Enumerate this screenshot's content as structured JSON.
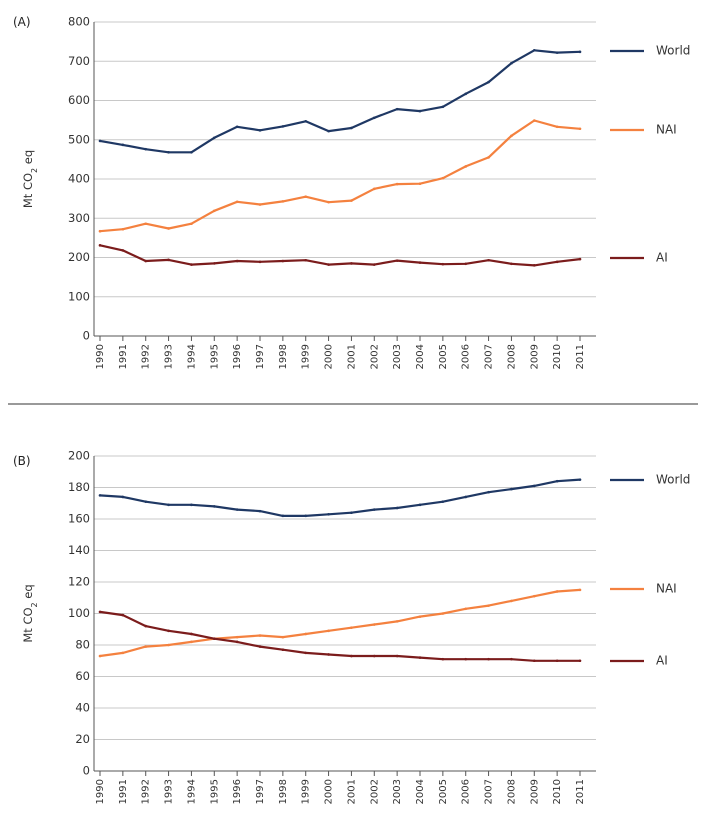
{
  "chart_data": [
    {
      "type": "line",
      "panel_label": "(A)",
      "ylabel": "Mt CO2 eq",
      "ylim": [
        0,
        800
      ],
      "yticks": [
        "0",
        "100",
        "200",
        "300",
        "400",
        "500",
        "600",
        "700",
        "800"
      ],
      "x": [
        "1990",
        "1991",
        "1992",
        "1993",
        "1994",
        "1995",
        "1996",
        "1997",
        "1998",
        "1999",
        "2000",
        "2001",
        "2002",
        "2003",
        "2004",
        "2005",
        "2006",
        "2007",
        "2008",
        "2009",
        "2010",
        "2011"
      ],
      "grid": true,
      "legend": "right",
      "series": [
        {
          "name": "World",
          "color": "#1f3864",
          "values": [
            497,
            487,
            476,
            468,
            468,
            505,
            533,
            524,
            534,
            547,
            522,
            530,
            556,
            578,
            573,
            584,
            617,
            647,
            695,
            728,
            722,
            724
          ]
        },
        {
          "name": "NAI",
          "color": "#f4813f",
          "values": [
            267,
            272,
            286,
            274,
            286,
            319,
            342,
            335,
            343,
            355,
            341,
            345,
            375,
            387,
            388,
            402,
            432,
            455,
            510,
            549,
            533,
            528
          ]
        },
        {
          "name": "AI",
          "color": "#7b1c1c",
          "values": [
            231,
            218,
            191,
            194,
            182,
            185,
            191,
            189,
            191,
            193,
            182,
            185,
            182,
            192,
            187,
            183,
            184,
            193,
            184,
            180,
            189,
            196
          ]
        }
      ]
    },
    {
      "type": "line",
      "panel_label": "(B)",
      "ylabel": "Mt CO2 eq",
      "ylim": [
        0,
        200
      ],
      "yticks": [
        "0",
        "20",
        "40",
        "60",
        "80",
        "100",
        "120",
        "140",
        "160",
        "180",
        "200"
      ],
      "x": [
        "1990",
        "1991",
        "1992",
        "1993",
        "1994",
        "1995",
        "1996",
        "1997",
        "1998",
        "1999",
        "2000",
        "2001",
        "2002",
        "2003",
        "2004",
        "2005",
        "2006",
        "2007",
        "2008",
        "2009",
        "2010",
        "2011"
      ],
      "grid": true,
      "legend": "right",
      "series": [
        {
          "name": "World",
          "color": "#1f3864",
          "values": [
            175,
            174,
            171,
            169,
            169,
            168,
            166,
            165,
            162,
            162,
            163,
            164,
            166,
            167,
            169,
            171,
            174,
            177,
            179,
            181,
            184,
            185
          ]
        },
        {
          "name": "NAI",
          "color": "#f4813f",
          "values": [
            73,
            75,
            79,
            80,
            82,
            84,
            85,
            86,
            85,
            87,
            89,
            91,
            93,
            95,
            98,
            100,
            103,
            105,
            108,
            111,
            114,
            115
          ]
        },
        {
          "name": "AI",
          "color": "#7b1c1c",
          "values": [
            101,
            99,
            92,
            89,
            87,
            84,
            82,
            79,
            77,
            75,
            74,
            73,
            73,
            73,
            72,
            71,
            71,
            71,
            71,
            70,
            70,
            70
          ]
        }
      ]
    }
  ]
}
